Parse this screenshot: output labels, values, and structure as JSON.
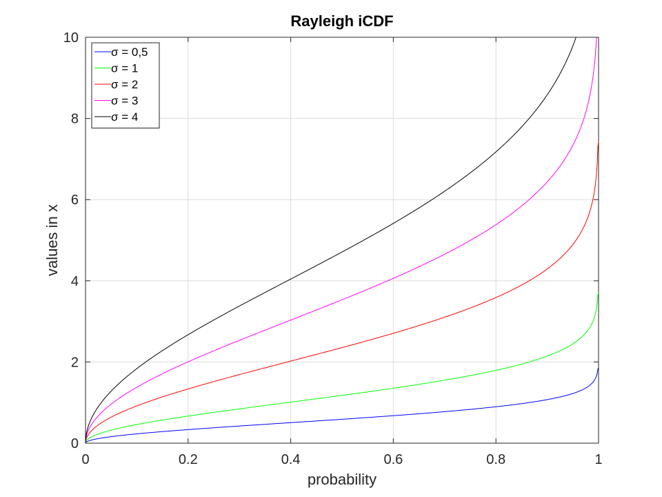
{
  "chart_data": {
    "type": "line",
    "title": "Rayleigh iCDF",
    "xlabel": "probability",
    "ylabel": "values in x",
    "xlim": [
      0,
      1
    ],
    "ylim": [
      0,
      10
    ],
    "xticks": [
      "0",
      "0.2",
      "0.4",
      "0.6",
      "0.8",
      "1"
    ],
    "yticks": [
      "0",
      "2",
      "4",
      "6",
      "8",
      "10"
    ],
    "grid": true,
    "legend_position": "top-left",
    "x": [
      0,
      0.01,
      0.02,
      0.05,
      0.1,
      0.15,
      0.2,
      0.25,
      0.3,
      0.35,
      0.4,
      0.45,
      0.5,
      0.55,
      0.6,
      0.65,
      0.7,
      0.75,
      0.8,
      0.85,
      0.9,
      0.93,
      0.95,
      0.97,
      0.98,
      0.99,
      0.995,
      0.999,
      1
    ],
    "series": [
      {
        "name": "σ = 0,5",
        "sigma": 0.5,
        "color": "#0000ff",
        "values": [
          0,
          0.071,
          0.101,
          0.16,
          0.23,
          0.285,
          0.334,
          0.379,
          0.422,
          0.464,
          0.505,
          0.547,
          0.589,
          0.632,
          0.677,
          0.724,
          0.776,
          0.833,
          0.897,
          0.974,
          1.073,
          1.153,
          1.224,
          1.324,
          1.399,
          1.517,
          1.628,
          1.858,
          1.858
        ]
      },
      {
        "name": "σ = 1",
        "sigma": 1,
        "color": "#00ff00",
        "values": [
          0,
          0.142,
          0.201,
          0.32,
          0.459,
          0.57,
          0.668,
          0.759,
          0.845,
          0.928,
          1.011,
          1.094,
          1.177,
          1.264,
          1.354,
          1.449,
          1.552,
          1.665,
          1.794,
          1.948,
          2.146,
          2.306,
          2.448,
          2.648,
          2.797,
          3.035,
          3.255,
          3.717,
          3.717
        ]
      },
      {
        "name": "σ = 2",
        "sigma": 2,
        "color": "#ff0000",
        "values": [
          0,
          0.284,
          0.402,
          0.641,
          0.918,
          1.14,
          1.336,
          1.517,
          1.689,
          1.857,
          2.021,
          2.187,
          2.355,
          2.527,
          2.707,
          2.898,
          3.103,
          3.33,
          3.588,
          3.896,
          4.292,
          4.612,
          4.895,
          5.296,
          5.594,
          6.07,
          6.511,
          7.434,
          7.434
        ]
      },
      {
        "name": "σ = 3",
        "sigma": 3,
        "color": "#ff00ff",
        "values": [
          0,
          0.426,
          0.603,
          0.961,
          1.377,
          1.71,
          2.004,
          2.276,
          2.534,
          2.785,
          3.032,
          3.28,
          3.532,
          3.791,
          4.061,
          4.346,
          4.655,
          4.995,
          5.382,
          5.844,
          6.438,
          6.918,
          7.343,
          7.944,
          8.391,
          9.105,
          9.766,
          10.0,
          10.0
        ]
      },
      {
        "name": "σ = 4",
        "sigma": 4,
        "color": "#000000",
        "values": [
          0,
          0.568,
          0.804,
          1.281,
          1.836,
          2.28,
          2.672,
          3.034,
          3.378,
          3.713,
          4.043,
          4.374,
          4.71,
          5.055,
          5.414,
          5.795,
          6.206,
          6.66,
          7.176,
          7.791,
          8.584,
          9.223,
          9.791,
          10.0,
          10.0,
          10.0,
          10.0,
          10.0,
          10.0
        ]
      }
    ]
  }
}
